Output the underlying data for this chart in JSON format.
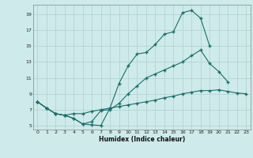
{
  "title": "",
  "xlabel": "Humidex (Indice chaleur)",
  "bg_color": "#ceeaea",
  "line_color": "#1a6e6a",
  "grid_color": "#b0d0d0",
  "xlim": [
    -0.5,
    23.5
  ],
  "ylim": [
    4.5,
    20.2
  ],
  "xticks": [
    0,
    1,
    2,
    3,
    4,
    5,
    6,
    7,
    8,
    9,
    10,
    11,
    12,
    13,
    14,
    15,
    16,
    17,
    18,
    19,
    20,
    21,
    22,
    23
  ],
  "yticks": [
    5,
    7,
    9,
    11,
    13,
    15,
    17,
    19
  ],
  "line1_x": [
    0,
    1,
    2,
    3,
    4,
    5,
    6,
    7,
    8,
    9,
    10,
    11,
    12,
    13,
    14,
    15,
    16,
    17,
    18,
    19
  ],
  "line1_y": [
    8.0,
    7.2,
    6.5,
    6.3,
    5.9,
    5.2,
    5.1,
    5.0,
    7.2,
    10.3,
    12.5,
    14.0,
    14.2,
    15.2,
    16.5,
    16.8,
    19.2,
    19.5,
    18.5,
    15.0
  ],
  "line2_x": [
    0,
    1,
    2,
    3,
    4,
    5,
    6,
    7,
    8,
    9,
    10,
    11,
    12,
    13,
    14,
    15,
    16,
    17,
    18,
    19,
    20,
    21
  ],
  "line2_y": [
    8.0,
    7.2,
    6.5,
    6.3,
    5.9,
    5.2,
    5.5,
    6.9,
    7.0,
    7.8,
    9.0,
    10.0,
    11.0,
    11.5,
    12.0,
    12.5,
    13.0,
    13.8,
    14.5,
    12.8,
    11.8,
    10.5
  ],
  "line3_x": [
    0,
    1,
    2,
    3,
    4,
    5,
    6,
    7,
    8,
    9,
    10,
    11,
    12,
    13,
    14,
    15,
    16,
    17,
    18,
    19,
    20,
    21,
    22,
    23
  ],
  "line3_y": [
    8.0,
    7.2,
    6.5,
    6.3,
    6.5,
    6.5,
    6.8,
    7.0,
    7.2,
    7.4,
    7.6,
    7.8,
    8.0,
    8.2,
    8.5,
    8.7,
    9.0,
    9.2,
    9.4,
    9.4,
    9.5,
    9.3,
    9.1,
    9.0
  ]
}
